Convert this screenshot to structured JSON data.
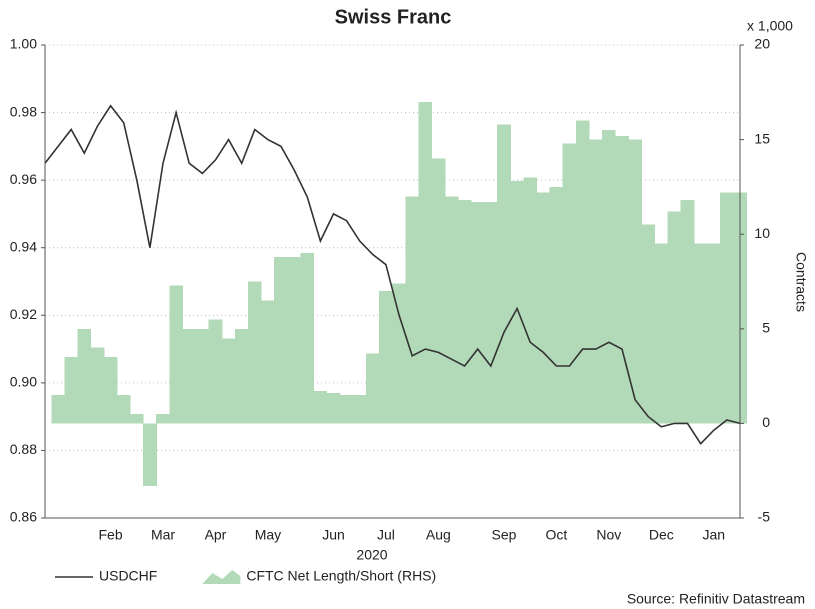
{
  "chart_data": {
    "type": "line",
    "title": "Swiss Franc",
    "x_axis_label": "2020",
    "y2_axis_label": "Contracts",
    "y2_unit_label": "x 1,000",
    "source": "Source: Refinitiv Datastream",
    "categories": [
      null,
      null,
      null,
      null,
      null,
      "Feb",
      null,
      null,
      null,
      "Mar",
      null,
      null,
      null,
      "Apr",
      null,
      null,
      null,
      "May",
      null,
      null,
      null,
      null,
      "Jun",
      null,
      null,
      null,
      "Jul",
      null,
      null,
      null,
      "Aug",
      null,
      null,
      null,
      null,
      "Sep",
      null,
      null,
      null,
      "Oct",
      null,
      null,
      null,
      "Nov",
      null,
      null,
      null,
      "Dec",
      null,
      null,
      null,
      "Jan",
      null,
      null
    ],
    "series": [
      {
        "name": "USDCHF",
        "type": "line",
        "color": "#333333",
        "values": [
          0.965,
          0.97,
          0.975,
          0.968,
          0.976,
          0.982,
          0.977,
          0.96,
          0.94,
          0.965,
          0.98,
          0.965,
          0.962,
          0.966,
          0.972,
          0.965,
          0.975,
          0.972,
          0.97,
          0.963,
          0.955,
          0.942,
          0.95,
          0.948,
          0.942,
          0.938,
          0.935,
          0.92,
          0.908,
          0.91,
          0.909,
          0.907,
          0.905,
          0.91,
          0.905,
          0.915,
          0.922,
          0.912,
          0.909,
          0.905,
          0.905,
          0.91,
          0.91,
          0.912,
          0.91,
          0.895,
          0.89,
          0.887,
          0.888,
          0.888,
          0.882,
          0.886,
          0.889,
          0.888
        ]
      },
      {
        "name": "CFTC Net Length/Short (RHS)",
        "type": "area",
        "axis": "y2",
        "color": "#b3dab8",
        "values": [
          0,
          1.5,
          3.5,
          5,
          4,
          3.5,
          1.5,
          0.5,
          -3.3,
          0.5,
          7.3,
          5,
          5,
          5.5,
          4.5,
          5,
          7.5,
          6.5,
          8.8,
          8.8,
          9,
          1.7,
          1.6,
          1.5,
          1.5,
          3.7,
          7,
          7.4,
          12,
          17,
          14,
          12,
          11.8,
          11.7,
          11.7,
          15.8,
          12.8,
          13,
          12.2,
          12.5,
          14.8,
          16,
          15,
          15.5,
          15.2,
          15,
          10.5,
          9.5,
          11.2,
          11.8,
          9.5,
          9.5,
          12.2,
          12.2
        ]
      }
    ],
    "ylim": [
      0.86,
      1.0
    ],
    "yticks": [
      0.86,
      0.88,
      {
        "value": 0.9,
        "label": "0.90"
      },
      0.92,
      0.94,
      0.96,
      0.98,
      {
        "value": 1.0,
        "label": "1.00"
      }
    ],
    "y2lim": [
      -5,
      20
    ],
    "y2ticks": [
      -5,
      0,
      5,
      10,
      15,
      20
    ],
    "grid": true
  }
}
